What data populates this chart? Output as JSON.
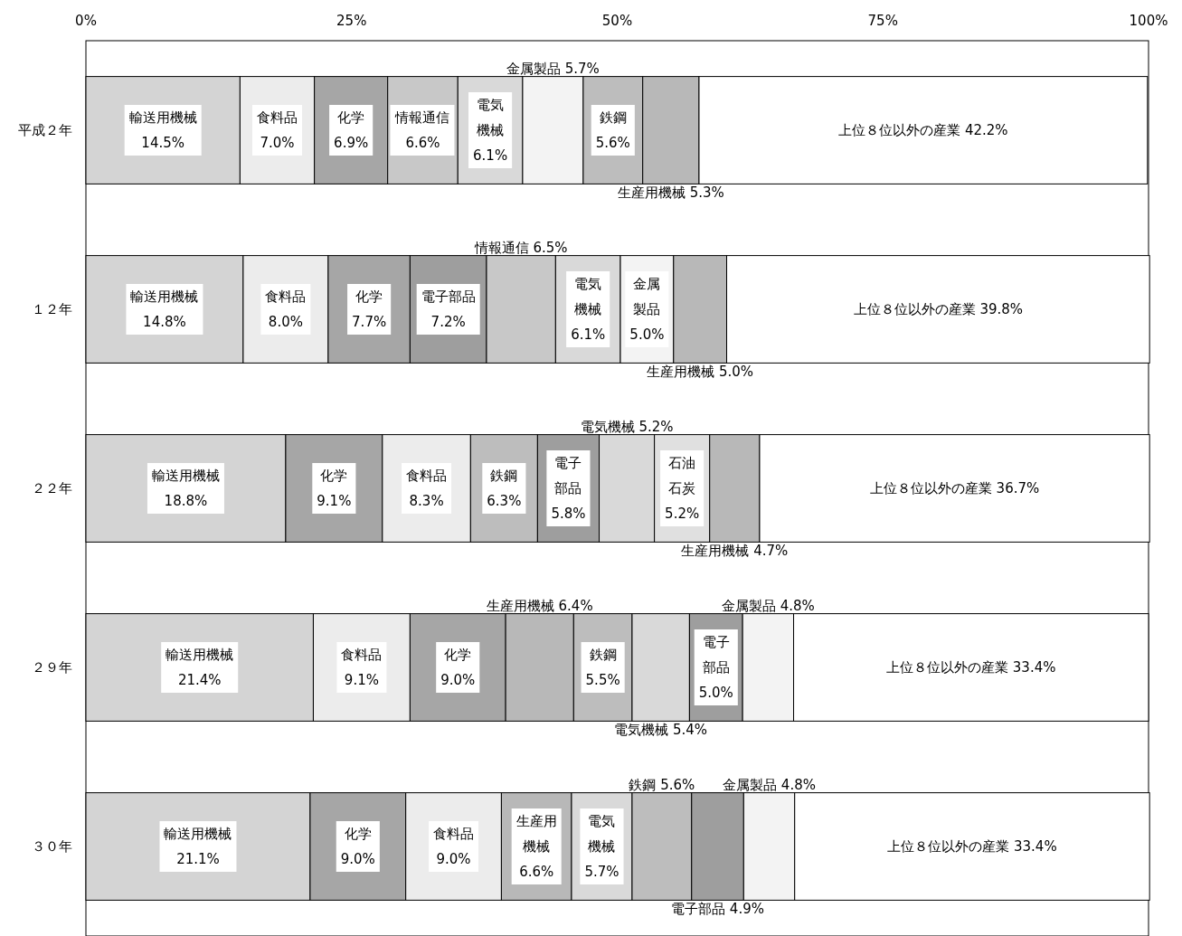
{
  "chart_data": {
    "type": "bar",
    "orientation": "horizontal",
    "stacked": true,
    "categories": [
      "平成２年",
      "１２年",
      "２２年",
      "２９年",
      "３０年"
    ],
    "xlim": [
      0,
      100
    ],
    "xticks": [
      {
        "value": 0,
        "label": "0%"
      },
      {
        "value": 25,
        "label": "25%"
      },
      {
        "value": 50,
        "label": "50%"
      },
      {
        "value": 75,
        "label": "75%"
      },
      {
        "value": 100,
        "label": "100%"
      }
    ],
    "series": [
      {
        "values": [
          14.5,
          14.8,
          18.8,
          21.4,
          21.1
        ],
        "colors": [
          "#d4d4d4",
          "#d4d4d4",
          "#d4d4d4",
          "#d4d4d4",
          "#d4d4d4"
        ],
        "value_labels": [
          "輸送用機械14.5%",
          "輸送用機械14.8%",
          "輸送用機械18.8%",
          "輸送用機械21.4%",
          "輸送用機械21.1%"
        ]
      },
      {
        "values": [
          7.0,
          8.0,
          9.1,
          9.1,
          9.0
        ],
        "colors": [
          "#ececec",
          "#ececec",
          "#a6a6a6",
          "#ececec",
          "#a6a6a6"
        ],
        "value_labels": [
          "食料品7.0%",
          "食料品8.0%",
          "化学9.1%",
          "食料品9.1%",
          "化学9.0%"
        ]
      },
      {
        "values": [
          6.9,
          7.7,
          8.3,
          9.0,
          9.0
        ],
        "colors": [
          "#a6a6a6",
          "#a6a6a6",
          "#ececec",
          "#a6a6a6",
          "#ececec"
        ],
        "value_labels": [
          "化学6.9%",
          "化学7.7%",
          "食料品8.3%",
          "化学9.0%",
          "食料品9.0%"
        ]
      },
      {
        "values": [
          6.6,
          7.2,
          6.3,
          6.4,
          6.6
        ],
        "colors": [
          "#c8c8c8",
          "#9e9e9e",
          "#bdbdbd",
          "#b8b8b8",
          "#b8b8b8"
        ],
        "value_labels": [
          "情報通信6.6%",
          "電子部品7.2%",
          "鉄鋼6.3%",
          "生産用機械 6.4%",
          "生産用機械6.6%"
        ]
      },
      {
        "values": [
          6.1,
          6.5,
          5.8,
          5.5,
          5.7
        ],
        "colors": [
          "#d9d9d9",
          "#c8c8c8",
          "#9e9e9e",
          "#bdbdbd",
          "#d9d9d9"
        ],
        "value_labels": [
          "電気機械6.1%",
          "情報通信 6.5%",
          "電子部品5.8%",
          "鉄鋼5.5%",
          "電気機械5.7%"
        ]
      },
      {
        "values": [
          5.7,
          6.1,
          5.2,
          5.4,
          5.6
        ],
        "colors": [
          "#f3f3f3",
          "#d9d9d9",
          "#d9d9d9",
          "#d9d9d9",
          "#bdbdbd"
        ],
        "value_labels": [
          "金属製品 5.7%",
          "電気機械6.1%",
          "電気機械 5.2%",
          "電気機械 5.4%",
          "鉄鋼 5.6%"
        ]
      },
      {
        "values": [
          5.6,
          5.0,
          5.2,
          5.0,
          4.9
        ],
        "colors": [
          "#bdbdbd",
          "#f3f3f3",
          "#e0e0e0",
          "#9e9e9e",
          "#9e9e9e"
        ],
        "value_labels": [
          "鉄鋼5.6%",
          "金属製品5.0%",
          "石油石炭5.2%",
          "電子部品5.0%",
          "電子部品 4.9%"
        ]
      },
      {
        "values": [
          5.3,
          5.0,
          4.7,
          4.8,
          4.8
        ],
        "colors": [
          "#b8b8b8",
          "#b8b8b8",
          "#b8b8b8",
          "#f3f3f3",
          "#f3f3f3"
        ],
        "value_labels": [
          "生産用機械 5.3%",
          "生産用機械 5.0%",
          "生産用機械 4.7%",
          "金属製品 4.8%",
          "金属製品 4.8%"
        ]
      },
      {
        "values": [
          42.2,
          39.8,
          36.7,
          33.4,
          33.4
        ],
        "colors": [
          "#ffffff",
          "#ffffff",
          "#ffffff",
          "#ffffff",
          "#ffffff"
        ],
        "value_labels": [
          "上位８位以外の産業 42.2%",
          "上位８位以外の産業 39.8%",
          "上位８位以外の産業 36.7%",
          "上位８位以外の産業 33.4%",
          "上位８位以外の産業 33.4%"
        ]
      }
    ]
  }
}
